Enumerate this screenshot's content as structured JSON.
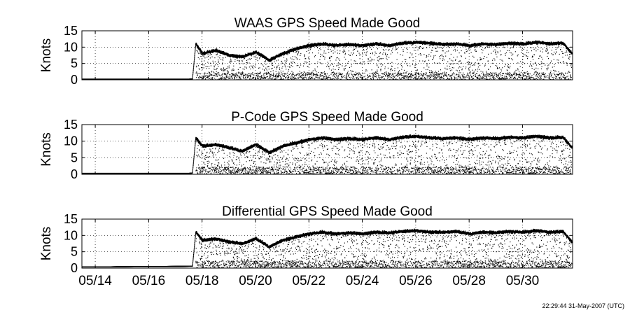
{
  "timestamp": "22:29:44 31-May-2007 (UTC)",
  "x_tick_labels": [
    "05/14",
    "05/16",
    "05/18",
    "05/20",
    "05/22",
    "05/24",
    "05/26",
    "05/28",
    "05/30"
  ],
  "chart_data": [
    {
      "type": "scatter",
      "title": "WAAS GPS Speed Made Good",
      "xlabel": "",
      "ylabel": "Knots",
      "x_unit": "date (May 2007)",
      "xlim": [
        "05/13 12:00",
        "05/31 21:00"
      ],
      "ylim": [
        0,
        15
      ],
      "yticks": [
        0,
        5,
        10,
        15
      ],
      "grid": true,
      "legend": "none",
      "color": "#000000",
      "series": [
        {
          "x": [
            "05/13 12:00",
            "05/14 12:00",
            "05/15 12:00",
            "05/16 12:00",
            "05/17 12:00",
            "05/17 15:00",
            "05/17 18:00",
            "05/18 00:00",
            "05/18 12:00",
            "05/19 00:00",
            "05/19 12:00",
            "05/20 00:00",
            "05/20 12:00",
            "05/21 00:00",
            "05/21 12:00",
            "05/22 00:00",
            "05/22 12:00",
            "05/23 00:00",
            "05/23 12:00",
            "05/24 00:00",
            "05/24 12:00",
            "05/25 00:00",
            "05/25 12:00",
            "05/26 00:00",
            "05/26 12:00",
            "05/27 00:00",
            "05/27 12:00",
            "05/28 00:00",
            "05/28 12:00",
            "05/29 00:00",
            "05/29 12:00",
            "05/30 00:00",
            "05/30 12:00",
            "05/31 00:00",
            "05/31 12:00",
            "05/31 20:00"
          ],
          "y": [
            0.2,
            0.2,
            0.2,
            0.2,
            0.2,
            0.3,
            11.0,
            8.0,
            9.0,
            7.5,
            7.0,
            8.5,
            6.0,
            8.0,
            9.5,
            10.5,
            11.0,
            10.5,
            10.8,
            10.5,
            11.0,
            10.5,
            11.2,
            11.5,
            11.2,
            10.8,
            11.0,
            10.5,
            11.0,
            10.8,
            11.2,
            11.0,
            11.5,
            11.0,
            11.3,
            8.0
          ]
        }
      ]
    },
    {
      "type": "scatter",
      "title": "P-Code GPS Speed Made Good",
      "xlabel": "",
      "ylabel": "Knots",
      "x_unit": "date (May 2007)",
      "xlim": [
        "05/13 12:00",
        "05/31 21:00"
      ],
      "ylim": [
        0,
        15
      ],
      "yticks": [
        0,
        5,
        10,
        15
      ],
      "grid": true,
      "legend": "none",
      "color": "#000000",
      "series": [
        {
          "x": [
            "05/13 12:00",
            "05/14 12:00",
            "05/15 12:00",
            "05/16 12:00",
            "05/17 12:00",
            "05/17 15:00",
            "05/17 18:00",
            "05/18 00:00",
            "05/18 12:00",
            "05/19 00:00",
            "05/19 12:00",
            "05/20 00:00",
            "05/20 12:00",
            "05/21 00:00",
            "05/21 12:00",
            "05/22 00:00",
            "05/22 12:00",
            "05/23 00:00",
            "05/23 12:00",
            "05/24 00:00",
            "05/24 12:00",
            "05/25 00:00",
            "05/25 12:00",
            "05/26 00:00",
            "05/26 12:00",
            "05/27 00:00",
            "05/27 12:00",
            "05/28 00:00",
            "05/28 12:00",
            "05/29 00:00",
            "05/29 12:00",
            "05/30 00:00",
            "05/30 12:00",
            "05/31 00:00",
            "05/31 12:00",
            "05/31 20:00"
          ],
          "y": [
            0.3,
            0.3,
            0.3,
            0.3,
            0.3,
            0.4,
            11.0,
            8.5,
            9.0,
            8.0,
            7.0,
            9.0,
            6.5,
            8.5,
            9.5,
            10.5,
            11.0,
            10.5,
            10.8,
            10.5,
            11.0,
            10.5,
            11.2,
            11.5,
            11.0,
            10.8,
            11.0,
            10.5,
            11.0,
            10.8,
            11.2,
            11.0,
            11.5,
            11.0,
            11.2,
            8.0
          ]
        }
      ]
    },
    {
      "type": "scatter",
      "title": "Differential GPS Speed Made Good",
      "xlabel": "",
      "ylabel": "Knots",
      "x_unit": "date (May 2007)",
      "xlim": [
        "05/13 12:00",
        "05/31 21:00"
      ],
      "ylim": [
        0,
        15
      ],
      "yticks": [
        0,
        5,
        10,
        15
      ],
      "xticks": [
        "05/14",
        "05/16",
        "05/18",
        "05/20",
        "05/22",
        "05/24",
        "05/26",
        "05/28",
        "05/30"
      ],
      "grid": true,
      "legend": "none",
      "color": "#000000",
      "series": [
        {
          "x": [
            "05/13 12:00",
            "05/14 12:00",
            "05/15 12:00",
            "05/16 12:00",
            "05/17 12:00",
            "05/17 15:00",
            "05/17 18:00",
            "05/18 00:00",
            "05/18 12:00",
            "05/19 00:00",
            "05/19 12:00",
            "05/20 00:00",
            "05/20 12:00",
            "05/21 00:00",
            "05/21 12:00",
            "05/22 00:00",
            "05/22 12:00",
            "05/23 00:00",
            "05/23 12:00",
            "05/24 00:00",
            "05/24 12:00",
            "05/25 00:00",
            "05/25 12:00",
            "05/26 00:00",
            "05/26 12:00",
            "05/27 00:00",
            "05/27 12:00",
            "05/28 00:00",
            "05/28 12:00",
            "05/29 00:00",
            "05/29 12:00",
            "05/30 00:00",
            "05/30 12:00",
            "05/31 00:00",
            "05/31 12:00",
            "05/31 20:00"
          ],
          "y": [
            0.4,
            0.4,
            0.5,
            0.5,
            0.6,
            0.6,
            11.0,
            8.5,
            9.0,
            8.0,
            7.5,
            9.0,
            6.5,
            8.5,
            9.5,
            10.5,
            11.0,
            10.5,
            10.8,
            10.5,
            11.0,
            10.8,
            11.2,
            11.5,
            11.0,
            11.0,
            11.2,
            10.5,
            11.0,
            10.8,
            11.2,
            11.0,
            11.5,
            11.0,
            11.2,
            8.0
          ]
        }
      ]
    }
  ]
}
